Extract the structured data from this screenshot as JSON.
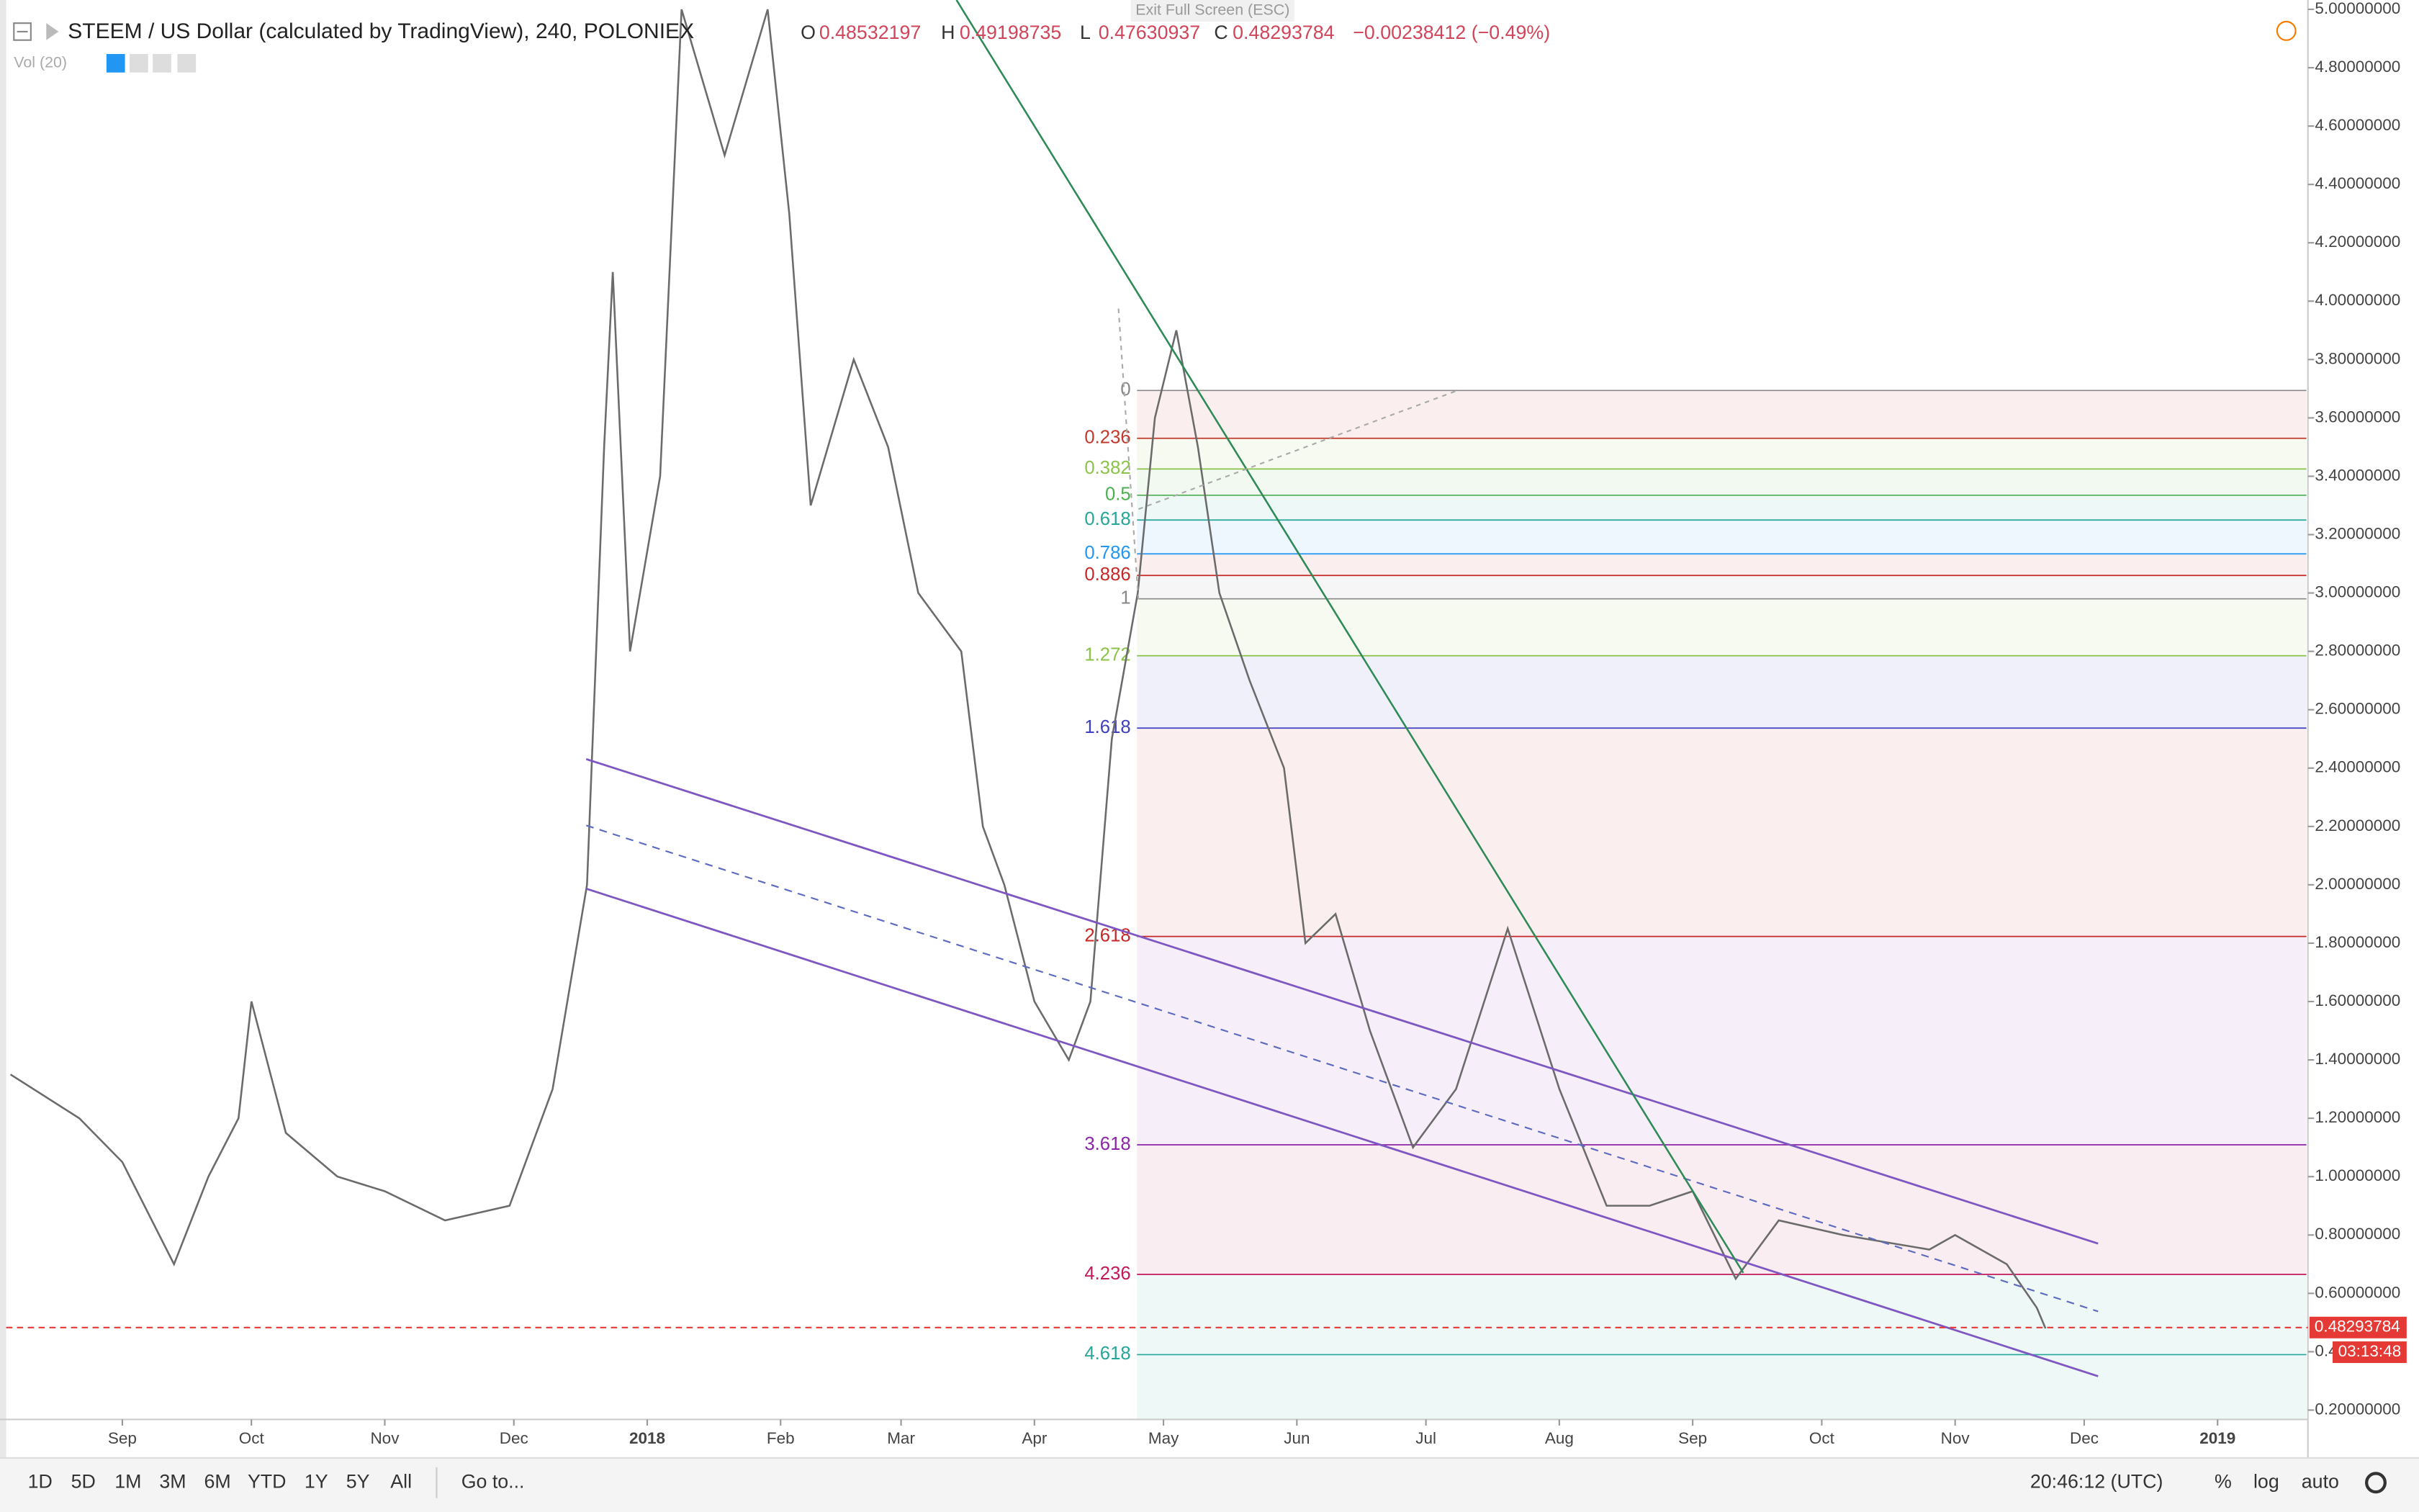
{
  "header": {
    "symbol": "STEEM / US Dollar (calculated by TradingView), 240, POLONIEX",
    "ohlc": [
      {
        "key": "O",
        "value": "0.48532197"
      },
      {
        "key": "H",
        "value": "0.49198735"
      },
      {
        "key": "L",
        "value": "0.47630937"
      },
      {
        "key": "C"
      }
    ],
    "change": "−0.00238412 (−0.49%)",
    "volume_study": "Vol (20)",
    "exit_fullscreen": "Exit Full Screen (ESC)"
  },
  "chart_data": {
    "type": "line",
    "color": "#6b6b6b",
    "x": [
      -26,
      -10,
      0,
      12,
      20,
      27,
      30,
      38,
      50,
      61,
      75,
      90,
      100,
      108,
      112,
      114,
      118,
      125,
      130,
      140,
      150,
      155,
      160,
      170,
      178,
      185,
      195,
      200,
      205,
      212,
      220,
      225,
      230,
      236,
      240,
      245,
      250,
      255,
      262,
      270,
      275,
      282,
      290,
      300,
      310,
      322,
      334,
      345,
      355,
      365,
      375,
      385,
      400,
      420,
      426,
      438,
      445,
      447
    ],
    "values": [
      1.35,
      1.2,
      1.05,
      0.7,
      1.0,
      1.2,
      1.6,
      1.15,
      1.0,
      0.95,
      0.85,
      0.9,
      1.3,
      2.0,
      3.5,
      4.1,
      2.8,
      3.4,
      5.0,
      4.5,
      5.0,
      4.3,
      3.3,
      3.8,
      3.5,
      3.0,
      2.8,
      2.2,
      2.0,
      1.6,
      1.4,
      1.6,
      2.5,
      3.0,
      3.6,
      3.9,
      3.5,
      3.0,
      2.7,
      2.4,
      1.8,
      1.9,
      1.5,
      1.1,
      1.3,
      1.85,
      1.3,
      0.9,
      0.9,
      0.95,
      0.65,
      0.85,
      0.8,
      0.75,
      0.8,
      0.7,
      0.55,
      0.48
    ],
    "xlim": [
      -27,
      508
    ],
    "xticks": [
      {
        "value": 0,
        "label": "Sep"
      },
      {
        "value": 30,
        "label": "Oct"
      },
      {
        "value": 61,
        "label": "Nov"
      },
      {
        "value": 91,
        "label": "Dec"
      },
      {
        "value": 122,
        "label": "2018"
      },
      {
        "value": 153,
        "label": "Feb"
      },
      {
        "value": 181,
        "label": "Mar"
      },
      {
        "value": 212,
        "label": "Apr"
      },
      {
        "value": 242,
        "label": "May"
      },
      {
        "value": 273,
        "label": "Jun"
      },
      {
        "value": 303,
        "label": "Jul"
      },
      {
        "value": 334,
        "label": "Aug"
      },
      {
        "value": 365,
        "label": "Sep"
      },
      {
        "value": 395,
        "label": "Oct"
      },
      {
        "value": 426,
        "label": "Nov"
      },
      {
        "value": 456,
        "label": "Dec"
      },
      {
        "value": 487,
        "label": "2019"
      }
    ],
    "ylim": [
      0.168,
      5.032
    ],
    "yticks": [
      {
        "value": 0.2,
        "label": "0.20000000"
      },
      {
        "value": 0.4,
        "label": "0.40000000"
      },
      {
        "value": 0.6,
        "label": "0.60000000"
      },
      {
        "value": 0.8,
        "label": "0.80000000"
      },
      {
        "value": 1.0,
        "label": "1.00000000"
      },
      {
        "value": 1.2,
        "label": "1.20000000"
      },
      {
        "value": 1.4,
        "label": "1.40000000"
      },
      {
        "value": 1.6,
        "label": "1.60000000"
      },
      {
        "value": 1.8,
        "label": "1.80000000"
      },
      {
        "value": 2.0,
        "label": "2.00000000"
      },
      {
        "value": 2.2,
        "label": "2.20000000"
      },
      {
        "value": 2.4,
        "label": "2.40000000"
      },
      {
        "value": 2.6,
        "label": "2.60000000"
      },
      {
        "value": 2.8,
        "label": "2.80000000"
      },
      {
        "value": 3.0,
        "label": "3.00000000"
      },
      {
        "value": 3.2,
        "label": "3.20000000"
      },
      {
        "value": 3.4,
        "label": "3.40000000"
      },
      {
        "value": 3.6,
        "label": "3.60000000"
      },
      {
        "value": 3.8,
        "label": "3.80000000"
      },
      {
        "value": 4.0,
        "label": "4.00000000"
      },
      {
        "value": 4.2,
        "label": "4.20000000"
      },
      {
        "value": 4.4,
        "label": "4.40000000"
      },
      {
        "value": 4.6,
        "label": "4.60000000"
      },
      {
        "value": 4.8,
        "label": "4.80000000"
      },
      {
        "value": 5.0,
        "label": "5.00000000"
      }
    ],
    "fib_levels": [
      {
        "label": "0",
        "value": 3.694,
        "color": "#888888"
      },
      {
        "label": "0.236",
        "value": 3.53,
        "color": "#c0392b"
      },
      {
        "label": "0.382",
        "value": 3.425,
        "color": "#8bc34a"
      },
      {
        "label": "0.5",
        "value": 3.335,
        "color": "#4caf50"
      },
      {
        "label": "0.618",
        "value": 3.25,
        "color": "#26a69a"
      },
      {
        "label": "0.786",
        "value": 3.134,
        "color": "#2196f3"
      },
      {
        "label": "0.886",
        "value": 3.06,
        "color": "#c62828"
      },
      {
        "label": "1",
        "value": 2.98,
        "color": "#888888"
      },
      {
        "label": "1.272",
        "value": 2.785,
        "color": "#8bc34a"
      },
      {
        "label": "1.618",
        "value": 2.537,
        "color": "#3f3fbf"
      },
      {
        "label": "2.618",
        "value": 1.823,
        "color": "#c62828"
      },
      {
        "label": "3.618",
        "value": 1.109,
        "color": "#8e24aa"
      },
      {
        "label": "4.236",
        "value": 0.665,
        "color": "#c2185b"
      },
      {
        "label": "4.618",
        "value": 0.39,
        "color": "#26a69a"
      }
    ],
    "last_price": {
      "value": 0.48293784,
      "label": "0.48293784"
    },
    "countdown": "03:13:48"
  },
  "toolbar": {
    "ranges": [
      "1D",
      "5D",
      "1M",
      "3M",
      "6M",
      "YTD",
      "1Y",
      "5Y",
      "All"
    ],
    "goto": "Go to...",
    "clock": "20:46:12 (UTC)",
    "options": [
      "%",
      "log",
      "auto"
    ]
  }
}
